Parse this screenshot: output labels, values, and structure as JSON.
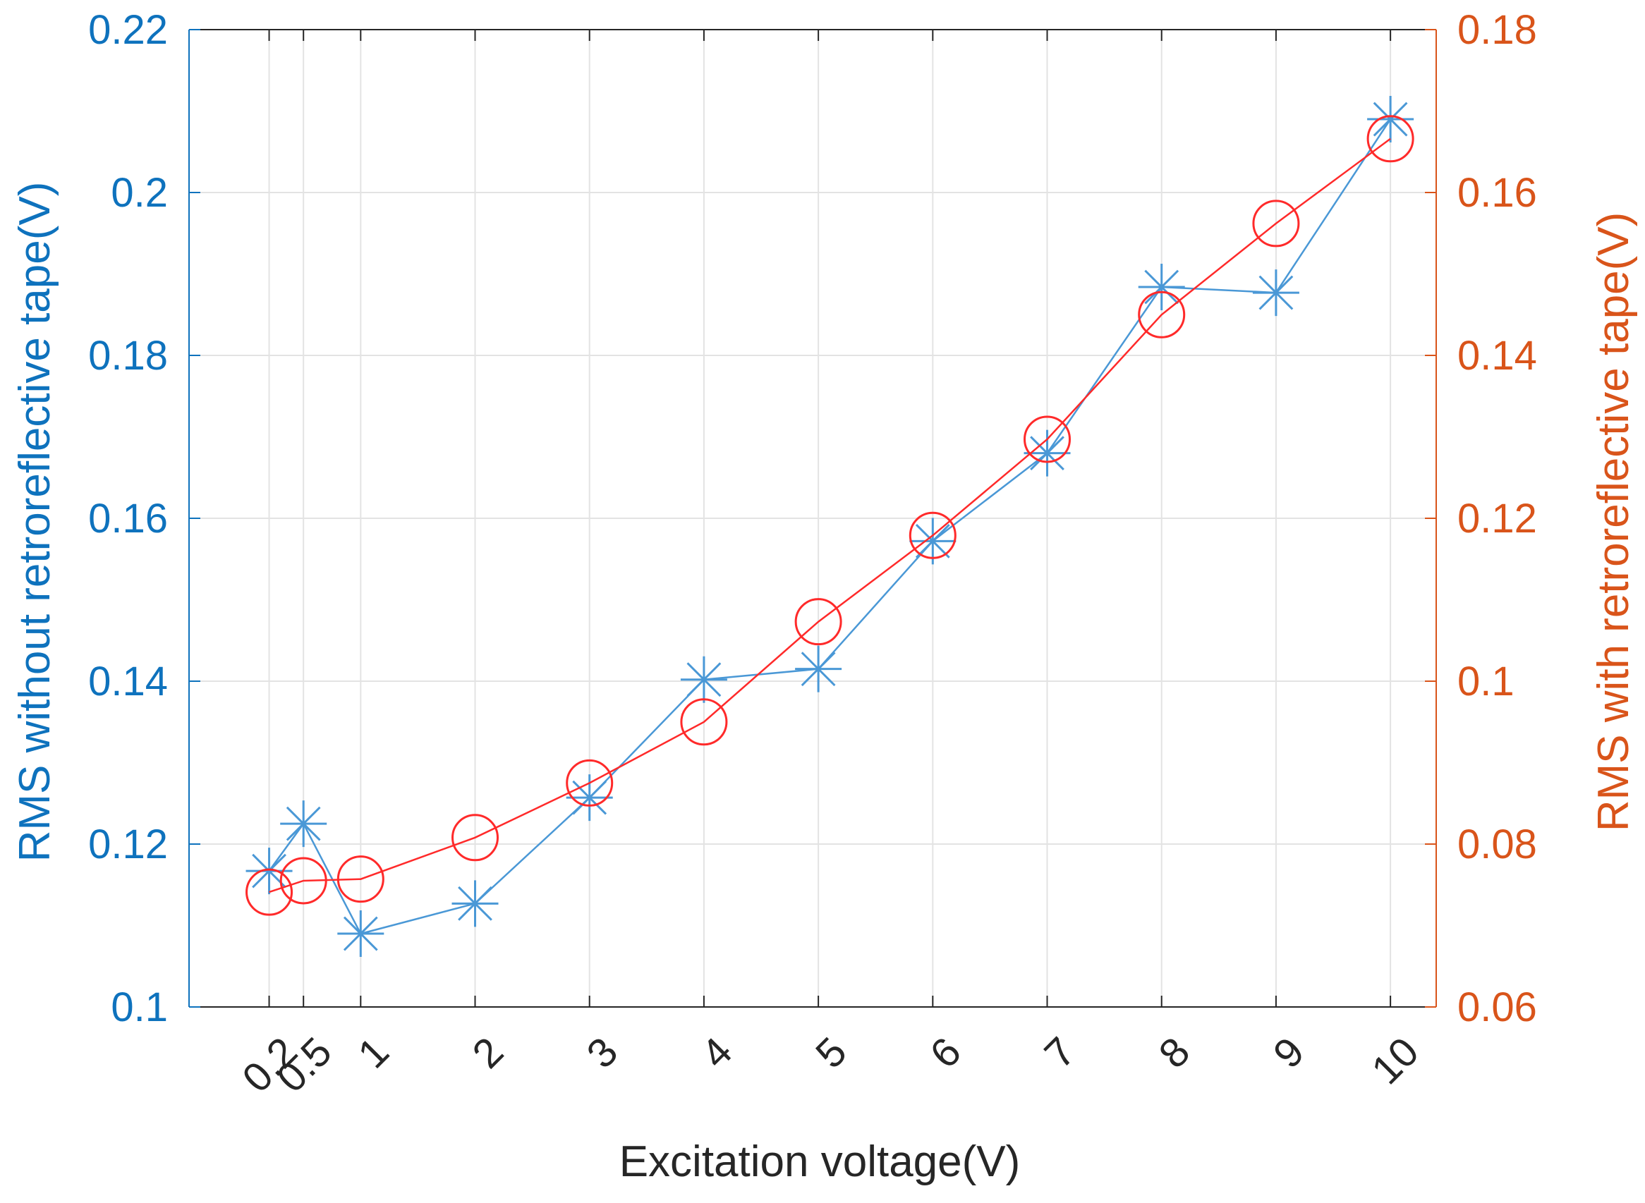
{
  "chart_data": {
    "type": "line",
    "xlabel": "Excitation voltage(V)",
    "x": [
      0.2,
      0.5,
      1,
      2,
      3,
      4,
      5,
      6,
      7,
      8,
      9,
      10
    ],
    "x_tick_labels": [
      "0.2",
      "0.5",
      "1",
      "2",
      "3",
      "4",
      "5",
      "6",
      "7",
      "8",
      "9",
      "10"
    ],
    "xlim": [
      -0.5,
      10.4
    ],
    "grid": true,
    "series": [
      {
        "name": "RMS without retroreflective tape(V)",
        "axis": "left",
        "marker": "asterisk",
        "color": "#4a98d6",
        "values": [
          0.1167,
          0.1225,
          0.109,
          0.1127,
          0.1257,
          0.1402,
          0.1415,
          0.1572,
          0.168,
          0.1884,
          0.1877,
          0.209
        ]
      },
      {
        "name": "RMS with retroreflective tape(V)",
        "axis": "right",
        "marker": "circle",
        "color": "#ff2a2a",
        "values": [
          0.0741,
          0.0755,
          0.0757,
          0.0808,
          0.0875,
          0.095,
          0.1073,
          0.1179,
          0.1297,
          0.145,
          0.1562,
          0.1666
        ]
      }
    ],
    "left_axis": {
      "label_prefix": "RMS ",
      "label_rest": "without retroreflective tape(V)",
      "ylim": [
        0.1,
        0.22
      ],
      "ticks": [
        0.1,
        0.12,
        0.14,
        0.16,
        0.18,
        0.2,
        0.22
      ],
      "tick_labels": [
        "0.1",
        "0.12",
        "0.14",
        "0.16",
        "0.18",
        "0.2",
        "0.22"
      ],
      "color": "#0e72bd"
    },
    "right_axis": {
      "label_prefix": "RMS ",
      "label_rest": "with retroreflective tape(V)",
      "ylim": [
        0.06,
        0.18
      ],
      "ticks": [
        0.06,
        0.08,
        0.1,
        0.12,
        0.14,
        0.16,
        0.18
      ],
      "tick_labels": [
        "0.06",
        "0.08",
        "0.1",
        "0.12",
        "0.14",
        "0.16",
        "0.18"
      ],
      "color": "#d9541a"
    }
  }
}
